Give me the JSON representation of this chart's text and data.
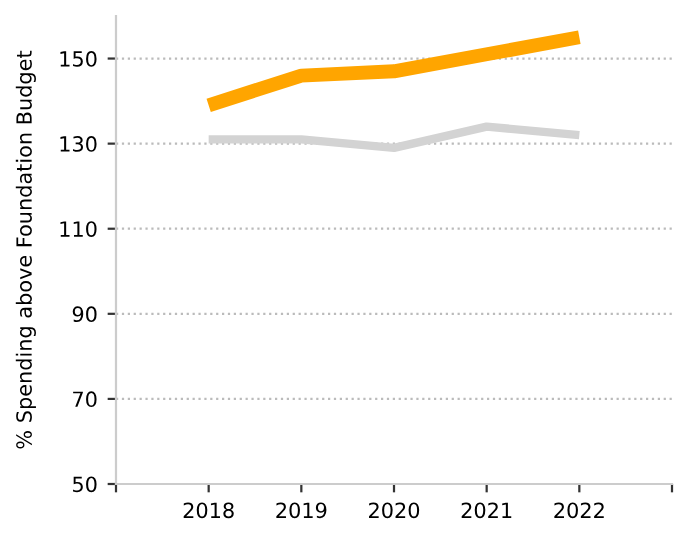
{
  "chart_data": {
    "type": "line",
    "ylabel": "% Spending above Foundation Budget",
    "x": [
      2018,
      2019,
      2020,
      2021,
      2022
    ],
    "series": [
      {
        "color": "#ffa500",
        "values": [
          139,
          146,
          147,
          151,
          155
        ]
      },
      {
        "color": "#d3d3d3",
        "values": [
          131,
          131,
          129,
          134,
          132
        ]
      }
    ],
    "xlim": [
      2017,
      2023
    ],
    "xticks": [
      {
        "value": 2017,
        "label": null
      },
      2018,
      2019,
      2020,
      2021,
      2022,
      {
        "value": 2023,
        "label": null
      }
    ],
    "ylim": [
      50,
      160
    ],
    "yticks": [
      50,
      70,
      90,
      110,
      130,
      150
    ],
    "grid": "y",
    "marker": "none",
    "line_style": "solid"
  }
}
